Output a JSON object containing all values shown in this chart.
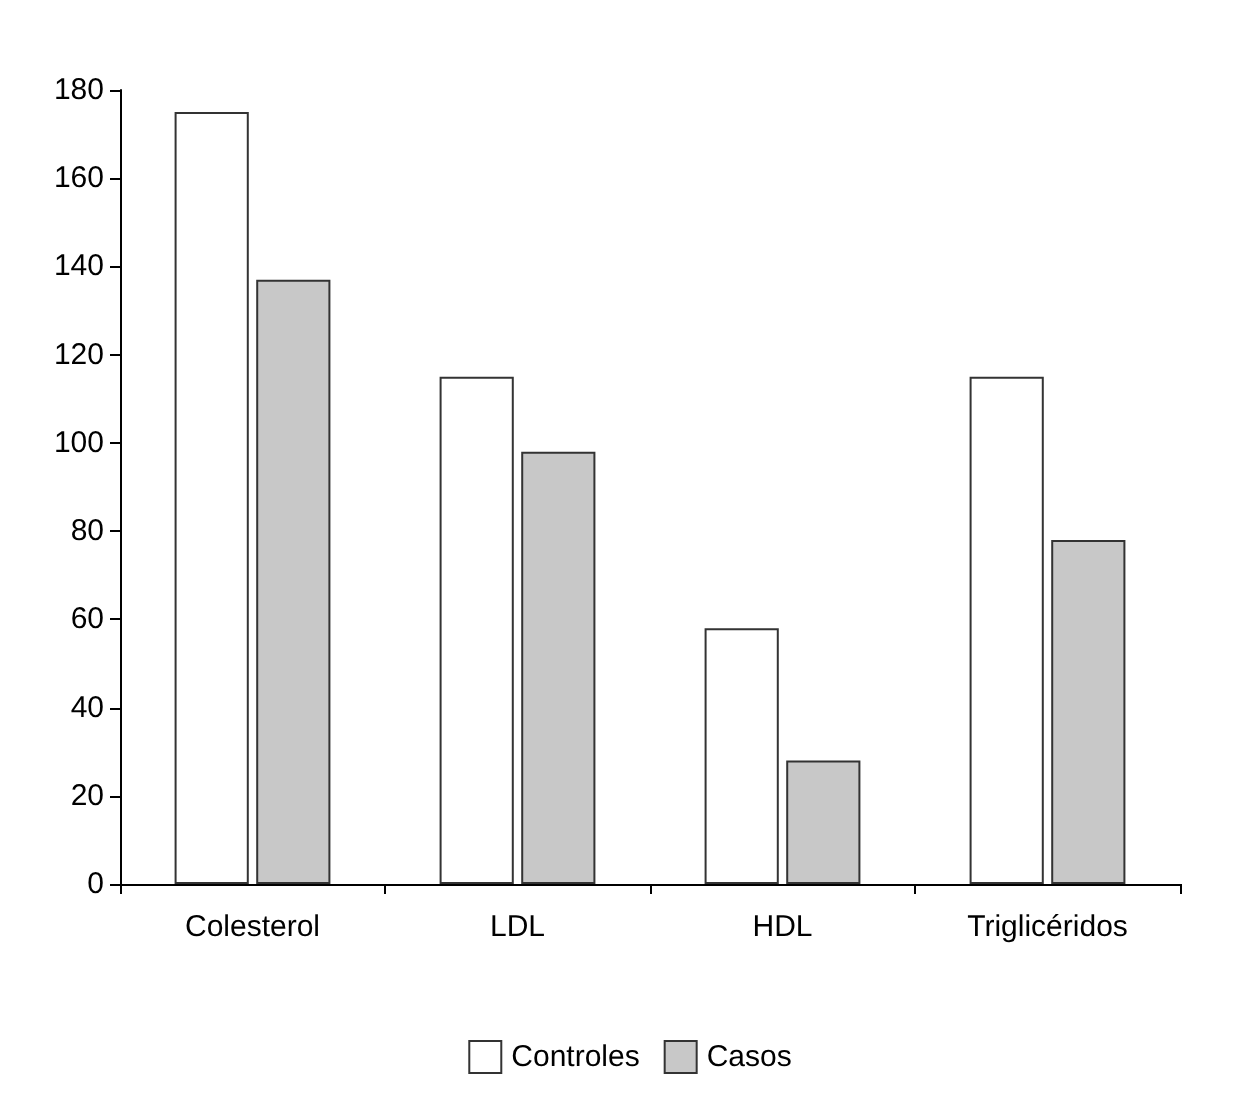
{
  "chart_data": {
    "type": "bar",
    "categories": [
      "Colesterol",
      "LDL",
      "HDL",
      "Triglicéridos"
    ],
    "series": [
      {
        "name": "Controles",
        "color": "#ffffff",
        "values": [
          175,
          115,
          58,
          115
        ]
      },
      {
        "name": "Casos",
        "color": "#c8c8c8",
        "values": [
          137,
          98,
          28,
          78
        ]
      }
    ],
    "ylim": [
      0,
      180
    ],
    "yticks": [
      0,
      20,
      40,
      60,
      80,
      100,
      120,
      140,
      160,
      180
    ],
    "grid": false,
    "legend": "bottom"
  }
}
